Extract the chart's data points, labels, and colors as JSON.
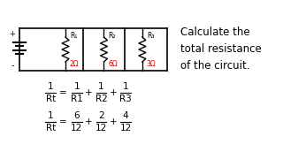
{
  "background_color": "#ffffff",
  "title_text": "Calculate the\ntotal resistance\nof the circuit.",
  "title_color": "#000000",
  "title_fontsize": 8.5,
  "resistor_labels": [
    "R₁",
    "R₂",
    "R₃"
  ],
  "resistor_values": [
    "2Ω",
    "6Ω",
    "3Ω"
  ],
  "resistor_color": "#cc0000",
  "circuit_color": "#000000",
  "wire_lw": 1.2,
  "resistor_lw": 1.0,
  "font_formula": 7.5,
  "font_resistor_label": 5.5,
  "font_resistor_value": 5.5,
  "formula1_fracs": [
    {
      "num": "1",
      "denom": "Rt"
    },
    {
      "num": "1",
      "denom": "R1"
    },
    {
      "num": "1",
      "denom": "R2"
    },
    {
      "num": "1",
      "denom": "R3"
    }
  ],
  "formula2_fracs": [
    {
      "num": "1",
      "denom": "Rt"
    },
    {
      "num": "6",
      "denom": "12"
    },
    {
      "num": "2",
      "denom": "12"
    },
    {
      "num": "4",
      "denom": "12"
    }
  ]
}
